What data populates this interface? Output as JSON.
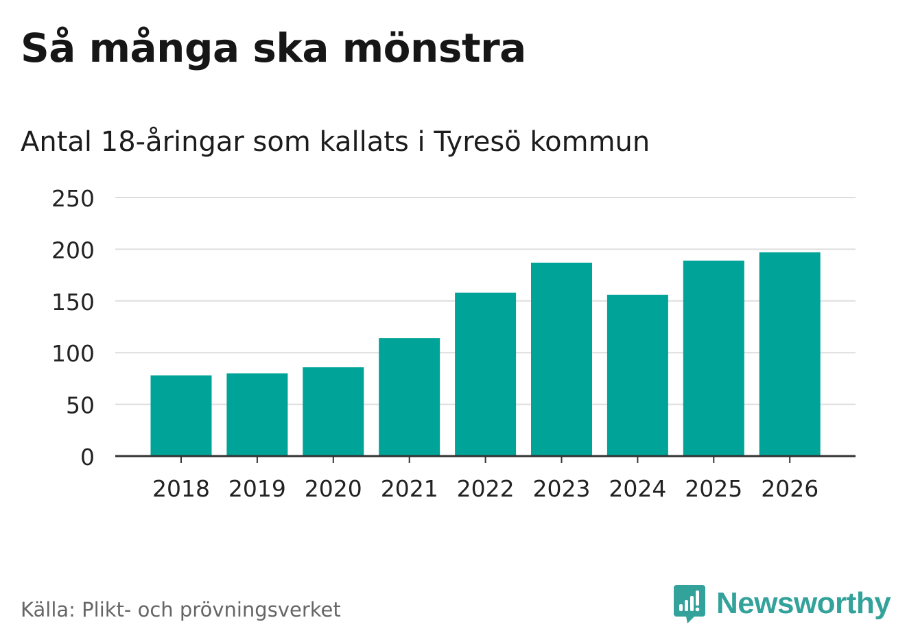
{
  "title": "Så många ska mönstra",
  "subtitle": "Antal 18-åringar som kallats i Tyresö kommun",
  "source": "Källa: Plikt- och prövningsverket",
  "brand": {
    "name": "Newsworthy",
    "icon": "newsworthy-logo-icon",
    "color": "#33a29a"
  },
  "colors": {
    "bar": "#00a398",
    "grid": "#dddddd",
    "axis": "#333333",
    "tick_text": "#222222"
  },
  "chart_data": {
    "type": "bar",
    "categories": [
      "2018",
      "2019",
      "2020",
      "2021",
      "2022",
      "2023",
      "2024",
      "2025",
      "2026"
    ],
    "series": [
      {
        "values": [
          78,
          80,
          86,
          114,
          158,
          187,
          156,
          189,
          197
        ]
      }
    ],
    "ylim": [
      0,
      250
    ],
    "yticks": [
      0,
      50,
      100,
      150,
      200,
      250
    ],
    "grid": true,
    "legend": "none"
  }
}
